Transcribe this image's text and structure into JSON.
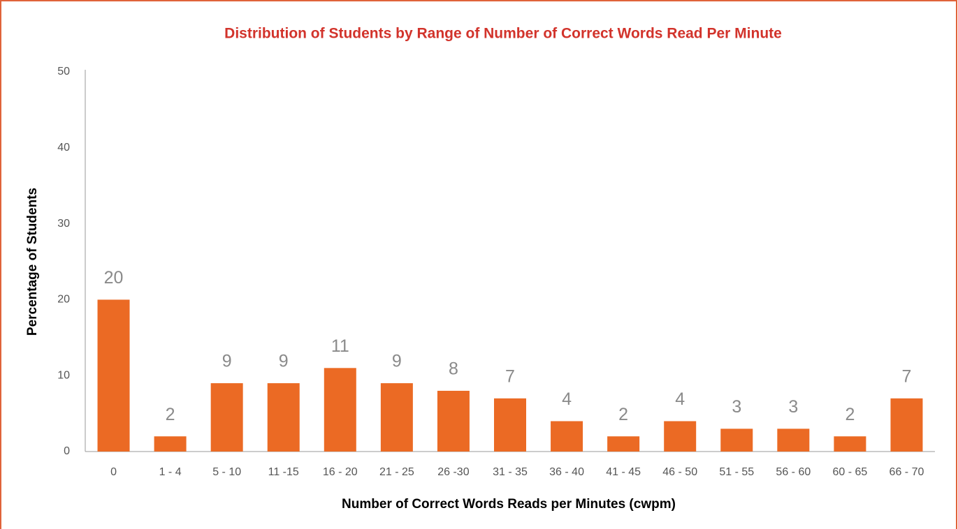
{
  "chart_data": {
    "type": "bar",
    "title": "Distribution of Students by Range of Number of Correct Words Read Per Minute",
    "x_label": "Number of Correct Words Reads per Minutes (cwpm)",
    "y_label": "Percentage of Students",
    "categories": [
      "0",
      "1 - 4",
      "5 - 10",
      "11 -15",
      "16 - 20",
      "21 - 25",
      "26 -30",
      "31 - 35",
      "36 - 40",
      "41 - 45",
      "46 - 50",
      "51 - 55",
      "56 - 60",
      "60 - 65",
      "66 - 70"
    ],
    "values": [
      20,
      2,
      9,
      9,
      11,
      9,
      8,
      7,
      4,
      2,
      4,
      3,
      3,
      2,
      7
    ],
    "color": "#eb6a24",
    "ylim": [
      0,
      50
    ],
    "yticks": [
      0,
      10,
      20,
      30,
      40,
      50
    ],
    "grid": false
  }
}
